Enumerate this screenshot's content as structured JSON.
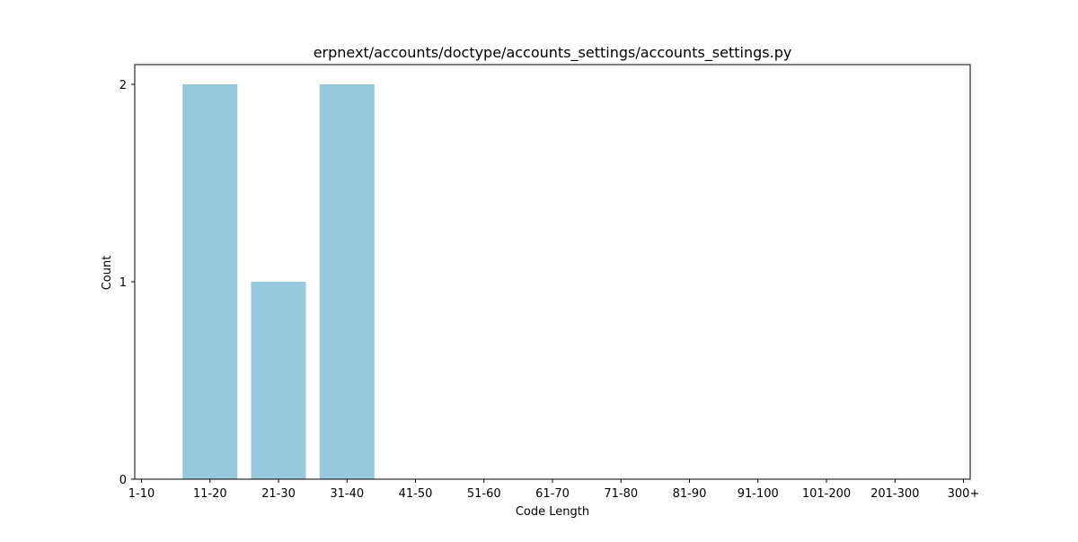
{
  "chart_data": {
    "type": "bar",
    "title": "erpnext/accounts/doctype/accounts_settings/accounts_settings.py",
    "xlabel": "Code Length",
    "ylabel": "Count",
    "categories": [
      "1-10",
      "11-20",
      "21-30",
      "31-40",
      "41-50",
      "51-60",
      "61-70",
      "71-80",
      "81-90",
      "91-100",
      "101-200",
      "201-300",
      "300+"
    ],
    "values": [
      0,
      2,
      1,
      2,
      0,
      0,
      0,
      0,
      0,
      0,
      0,
      0,
      0
    ],
    "ylim": [
      0,
      2.1
    ],
    "yticks": [
      0,
      1,
      2
    ],
    "bar_color": "#96c9de",
    "grid": false,
    "legend": "none"
  }
}
